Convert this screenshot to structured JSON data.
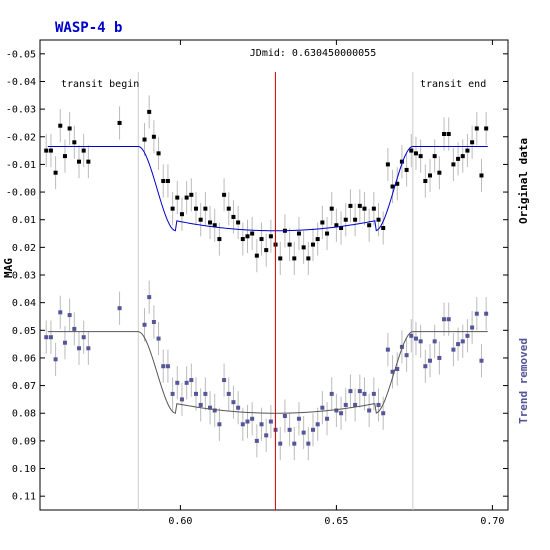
{
  "chart_data": {
    "type": "scatter",
    "title": "WASP-4 b",
    "ylabel": "MAG",
    "xlabel": "",
    "xlim": [
      0.555,
      0.705
    ],
    "ylim": [
      0.115,
      -0.055
    ],
    "y_inverted": true,
    "grid": false,
    "x_ticks": [
      0.6,
      0.65,
      0.7
    ],
    "x_tick_labels": [
      "0.60",
      "0.65",
      "0.70"
    ],
    "y_ticks": [
      -0.05,
      -0.04,
      -0.03,
      -0.02,
      -0.01,
      0.0,
      0.01,
      0.02,
      0.03,
      0.04,
      0.05,
      0.06,
      0.07,
      0.08,
      0.09,
      0.1,
      0.11
    ],
    "y_tick_labels": [
      "-0.05",
      "-0.04",
      "-0.03",
      "-0.02",
      "-0.01",
      "-0.00",
      "0.01",
      "0.02",
      "0.03",
      "0.04",
      "0.05",
      "0.06",
      "0.07",
      "0.08",
      "0.09",
      "0.10",
      "0.11"
    ],
    "annotations": {
      "jdmid": {
        "label": "JDmid: 0.630450000055",
        "x": 0.63045,
        "color": "#cc0000"
      },
      "transit_begin": {
        "label": "transit begin",
        "x": 0.5865
      },
      "transit_end": {
        "label": "transit end",
        "x": 0.6745
      }
    },
    "error_bar": 0.006,
    "series": [
      {
        "name": "Original data",
        "color": "#000000",
        "model_color": "#0000cc",
        "label_color": "#000000",
        "model": {
          "baseline": -0.0165,
          "depth": 0.0305,
          "ingress_start": 0.5865,
          "ingress_end": 0.5985,
          "egress_start": 0.6625,
          "egress_end": 0.6745
        },
        "x": [
          0.557,
          0.5585,
          0.56,
          0.5615,
          0.563,
          0.5645,
          0.566,
          0.5675,
          0.569,
          0.5705,
          0.5805,
          0.5885,
          0.59,
          0.5915,
          0.593,
          0.5945,
          0.596,
          0.5975,
          0.599,
          0.6005,
          0.602,
          0.6035,
          0.605,
          0.6065,
          0.608,
          0.6095,
          0.611,
          0.6125,
          0.614,
          0.6155,
          0.617,
          0.6185,
          0.62,
          0.6215,
          0.623,
          0.6245,
          0.626,
          0.6275,
          0.629,
          0.6305,
          0.632,
          0.6335,
          0.635,
          0.6365,
          0.638,
          0.6395,
          0.641,
          0.6425,
          0.644,
          0.6455,
          0.647,
          0.6485,
          0.65,
          0.6515,
          0.653,
          0.6545,
          0.656,
          0.6575,
          0.659,
          0.6605,
          0.662,
          0.6635,
          0.665,
          0.6665,
          0.668,
          0.6695,
          0.671,
          0.6725,
          0.674,
          0.6755,
          0.677,
          0.6785,
          0.68,
          0.6815,
          0.683,
          0.6845,
          0.686,
          0.6875,
          0.689,
          0.6905,
          0.692,
          0.6935,
          0.695,
          0.6965,
          0.698
        ],
        "y": [
          -0.015,
          -0.015,
          -0.007,
          -0.024,
          -0.013,
          -0.023,
          -0.018,
          -0.011,
          -0.015,
          -0.011,
          -0.025,
          -0.019,
          -0.029,
          -0.02,
          -0.014,
          -0.004,
          -0.004,
          0.006,
          0.002,
          0.008,
          0.002,
          0.001,
          0.006,
          0.01,
          0.006,
          0.011,
          0.012,
          0.017,
          0.001,
          0.006,
          0.009,
          0.011,
          0.017,
          0.016,
          0.015,
          0.023,
          0.017,
          0.021,
          0.016,
          0.019,
          0.024,
          0.014,
          0.019,
          0.024,
          0.015,
          0.02,
          0.024,
          0.019,
          0.017,
          0.011,
          0.015,
          0.006,
          0.012,
          0.013,
          0.01,
          0.005,
          0.01,
          0.005,
          0.006,
          0.012,
          0.006,
          0.01,
          0.013,
          -0.01,
          -0.002,
          -0.003,
          -0.011,
          -0.008,
          -0.015,
          -0.014,
          -0.013,
          -0.004,
          -0.006,
          -0.013,
          -0.007,
          -0.021,
          -0.021,
          -0.01,
          -0.012,
          -0.013,
          -0.015,
          -0.018,
          -0.023,
          -0.006,
          -0.023
        ]
      },
      {
        "name": "Trend removed",
        "color": "#555599",
        "model_color": "#555555",
        "label_color": "#555599",
        "model": {
          "baseline": 0.0505,
          "depth": 0.0295,
          "ingress_start": 0.5865,
          "ingress_end": 0.5985,
          "egress_start": 0.6625,
          "egress_end": 0.6745
        },
        "x": [
          0.557,
          0.5585,
          0.56,
          0.5615,
          0.563,
          0.5645,
          0.566,
          0.5675,
          0.569,
          0.5705,
          0.5805,
          0.5885,
          0.59,
          0.5915,
          0.593,
          0.5945,
          0.596,
          0.5975,
          0.599,
          0.6005,
          0.602,
          0.6035,
          0.605,
          0.6065,
          0.608,
          0.6095,
          0.611,
          0.6125,
          0.614,
          0.6155,
          0.617,
          0.6185,
          0.62,
          0.6215,
          0.623,
          0.6245,
          0.626,
          0.6275,
          0.629,
          0.6305,
          0.632,
          0.6335,
          0.635,
          0.6365,
          0.638,
          0.6395,
          0.641,
          0.6425,
          0.644,
          0.6455,
          0.647,
          0.6485,
          0.65,
          0.6515,
          0.653,
          0.6545,
          0.656,
          0.6575,
          0.659,
          0.6605,
          0.662,
          0.6635,
          0.665,
          0.6665,
          0.668,
          0.6695,
          0.671,
          0.6725,
          0.674,
          0.6755,
          0.677,
          0.6785,
          0.68,
          0.6815,
          0.683,
          0.6845,
          0.686,
          0.6875,
          0.689,
          0.6905,
          0.692,
          0.6935,
          0.695,
          0.6965,
          0.698
        ],
        "y": [
          0.0525,
          0.0525,
          0.0605,
          0.0435,
          0.0545,
          0.0445,
          0.0495,
          0.0565,
          0.0525,
          0.0565,
          0.042,
          0.048,
          0.038,
          0.047,
          0.053,
          0.063,
          0.063,
          0.073,
          0.069,
          0.075,
          0.069,
          0.068,
          0.073,
          0.077,
          0.073,
          0.078,
          0.079,
          0.084,
          0.068,
          0.073,
          0.076,
          0.078,
          0.084,
          0.083,
          0.082,
          0.09,
          0.084,
          0.088,
          0.083,
          0.086,
          0.091,
          0.081,
          0.086,
          0.091,
          0.082,
          0.087,
          0.091,
          0.086,
          0.084,
          0.078,
          0.082,
          0.073,
          0.079,
          0.08,
          0.077,
          0.072,
          0.077,
          0.072,
          0.073,
          0.079,
          0.073,
          0.077,
          0.08,
          0.057,
          0.065,
          0.064,
          0.056,
          0.059,
          0.052,
          0.053,
          0.054,
          0.063,
          0.061,
          0.054,
          0.06,
          0.046,
          0.046,
          0.057,
          0.055,
          0.054,
          0.052,
          0.049,
          0.044,
          0.061,
          0.044
        ]
      }
    ]
  }
}
